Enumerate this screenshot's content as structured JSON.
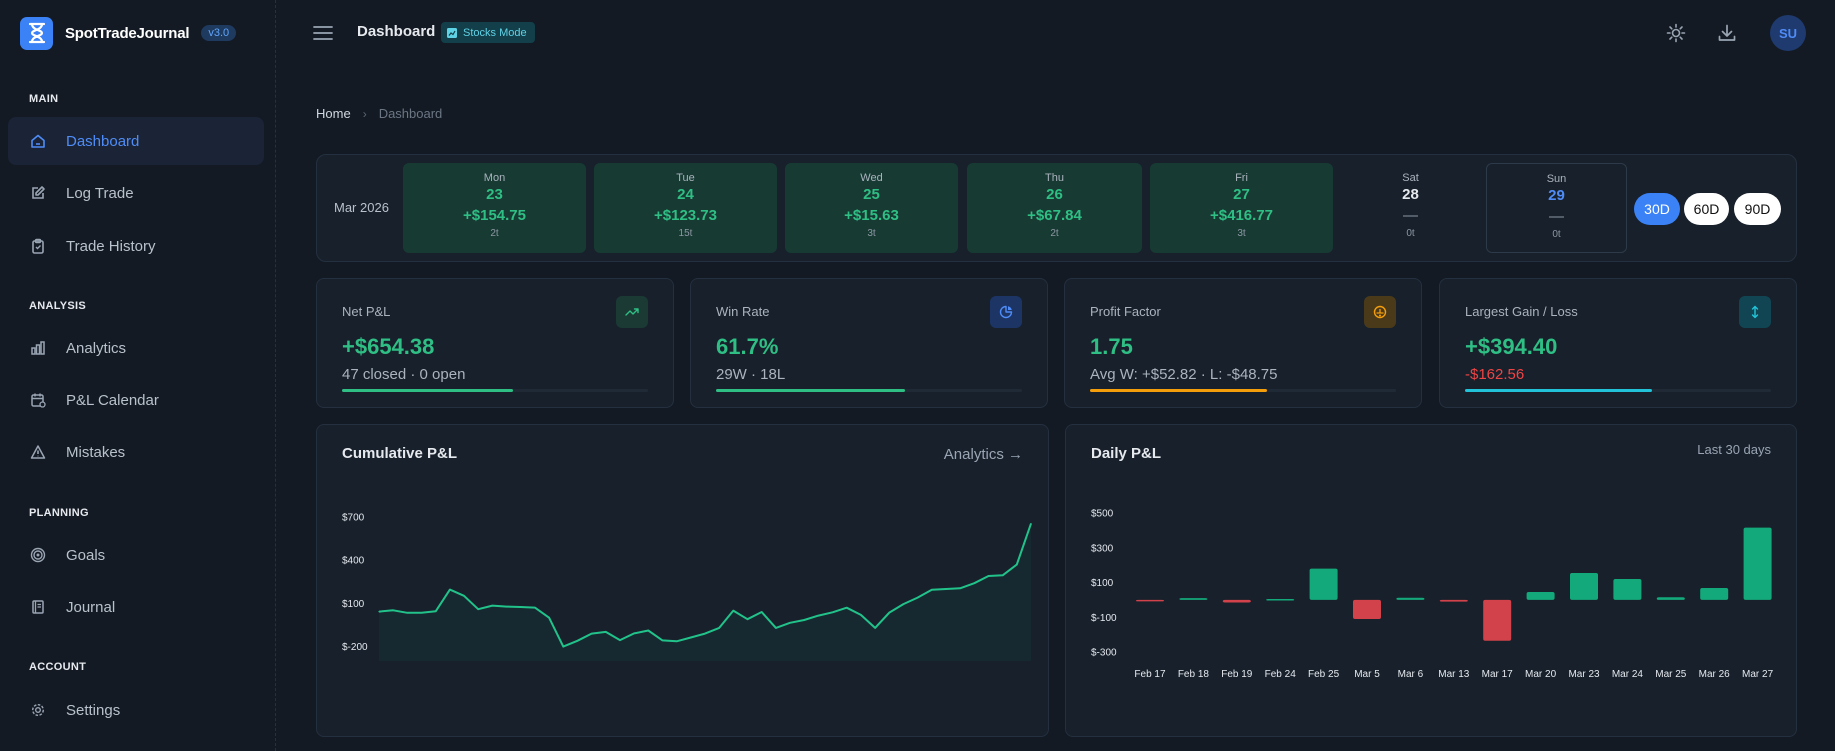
{
  "brand": {
    "name": "SpotTradeJournal",
    "version": "v3.0"
  },
  "sidebar": {
    "sections": [
      {
        "title": "MAIN",
        "items": [
          {
            "label": "Dashboard",
            "icon": "home-icon",
            "active": true
          },
          {
            "label": "Log Trade",
            "icon": "edit-icon"
          },
          {
            "label": "Trade History",
            "icon": "clipboard-icon"
          }
        ]
      },
      {
        "title": "ANALYSIS",
        "items": [
          {
            "label": "Analytics",
            "icon": "bar-chart-icon"
          },
          {
            "label": "P&L Calendar",
            "icon": "calendar-icon"
          },
          {
            "label": "Mistakes",
            "icon": "warning-icon"
          }
        ]
      },
      {
        "title": "PLANNING",
        "items": [
          {
            "label": "Goals",
            "icon": "target-icon"
          },
          {
            "label": "Journal",
            "icon": "notebook-icon"
          }
        ]
      },
      {
        "title": "ACCOUNT",
        "items": [
          {
            "label": "Settings",
            "icon": "gear-icon"
          }
        ]
      }
    ]
  },
  "topbar": {
    "title": "Dashboard",
    "mode_badge": "Stocks Mode",
    "avatar": "SU"
  },
  "breadcrumb": {
    "home": "Home",
    "current": "Dashboard"
  },
  "week": {
    "month": "Mar 2026",
    "days": [
      {
        "name": "Mon",
        "num": "23",
        "pnl": "+$154.75",
        "trades": "2t",
        "state": "win"
      },
      {
        "name": "Tue",
        "num": "24",
        "pnl": "+$123.73",
        "trades": "15t",
        "state": "win"
      },
      {
        "name": "Wed",
        "num": "25",
        "pnl": "+$15.63",
        "trades": "3t",
        "state": "win"
      },
      {
        "name": "Thu",
        "num": "26",
        "pnl": "+$67.84",
        "trades": "2t",
        "state": "win"
      },
      {
        "name": "Fri",
        "num": "27",
        "pnl": "+$416.77",
        "trades": "3t",
        "state": "win"
      },
      {
        "name": "Sat",
        "num": "28",
        "pnl": "—",
        "trades": "0t",
        "state": "empty"
      },
      {
        "name": "Sun",
        "num": "29",
        "pnl": "—",
        "trades": "0t",
        "state": "today"
      }
    ],
    "ranges": [
      "30D",
      "60D",
      "90D"
    ],
    "active_range": "30D"
  },
  "stats": [
    {
      "label": "Net P&L",
      "value": "+$654.38",
      "sub": "47 closed · 0 open",
      "icon": "trending-up-icon",
      "progress": 0.56,
      "accent": "#2fbf85",
      "icon_bg": "#1a3a33"
    },
    {
      "label": "Win Rate",
      "value": "61.7%",
      "sub": "29W · 18L",
      "icon": "pie-chart-icon",
      "progress": 0.617,
      "accent": "#2fbf85",
      "icon_bg": "#1c3565"
    },
    {
      "label": "Profit Factor",
      "value": "1.75",
      "sub": "Avg W: +$52.82 · L: -$48.75",
      "icon": "scale-icon",
      "progress": 0.58,
      "accent": "#f59e0b",
      "icon_bg": "#4a3a1a"
    },
    {
      "label": "Largest Gain / Loss",
      "value": "+$394.40",
      "sub": "-$162.56",
      "icon": "arrows-vertical-icon",
      "progress": 0.61,
      "accent": "#22c3d8",
      "icon_bg": "#114553"
    }
  ],
  "cumulative_panel": {
    "title": "Cumulative P&L",
    "link": "Analytics →"
  },
  "daily_panel": {
    "title": "Daily P&L",
    "note": "Last 30 days"
  },
  "chart_data": [
    {
      "type": "line",
      "title": "Cumulative P&L",
      "ytick_labels": [
        "$700",
        "$400",
        "$100",
        "$-200"
      ],
      "yticks": [
        700,
        400,
        100,
        -200
      ],
      "ylim": [
        -300,
        700
      ],
      "x": [
        1,
        2,
        3,
        4,
        5,
        6,
        7,
        8,
        9,
        10,
        11,
        12,
        13,
        14,
        15,
        16,
        17,
        18,
        19,
        20,
        21,
        22,
        23,
        24,
        25,
        26,
        27,
        28,
        29,
        30,
        31,
        32,
        33,
        34,
        35,
        36,
        37,
        38,
        39,
        40,
        41,
        42,
        43,
        44,
        45,
        46,
        47
      ],
      "values": [
        43,
        52,
        35,
        35,
        45,
        196,
        153,
        60,
        85,
        78,
        75,
        71,
        1,
        -200,
        -160,
        -110,
        -98,
        -155,
        -108,
        -88,
        -157,
        -163,
        -137,
        -110,
        -70,
        50,
        -10,
        40,
        -70,
        -35,
        -15,
        15,
        38,
        70,
        20,
        -70,
        36,
        95,
        140,
        195,
        200,
        205,
        240,
        290,
        295,
        370,
        654
      ],
      "series_color": "#22c38a",
      "grid": false
    },
    {
      "type": "bar",
      "title": "Daily P&L",
      "categories": [
        "Feb 17",
        "Feb 18",
        "Feb 19",
        "Feb 24",
        "Feb 25",
        "Mar 5",
        "Mar 6",
        "Mar 13",
        "Mar 17",
        "Mar 20",
        "Mar 23",
        "Mar 24",
        "Mar 25",
        "Mar 26",
        "Mar 27"
      ],
      "values": [
        -5,
        10,
        -15,
        5,
        180,
        -110,
        12,
        -10,
        -235,
        45,
        155,
        120,
        15,
        68,
        416
      ],
      "ytick_labels": [
        "$500",
        "$300",
        "$100",
        "$-100",
        "$-300"
      ],
      "yticks": [
        500,
        300,
        100,
        -100,
        -300
      ],
      "ylim": [
        -300,
        500
      ],
      "positive_color": "#14a97a",
      "negative_color": "#d2424a",
      "grid": false
    }
  ]
}
